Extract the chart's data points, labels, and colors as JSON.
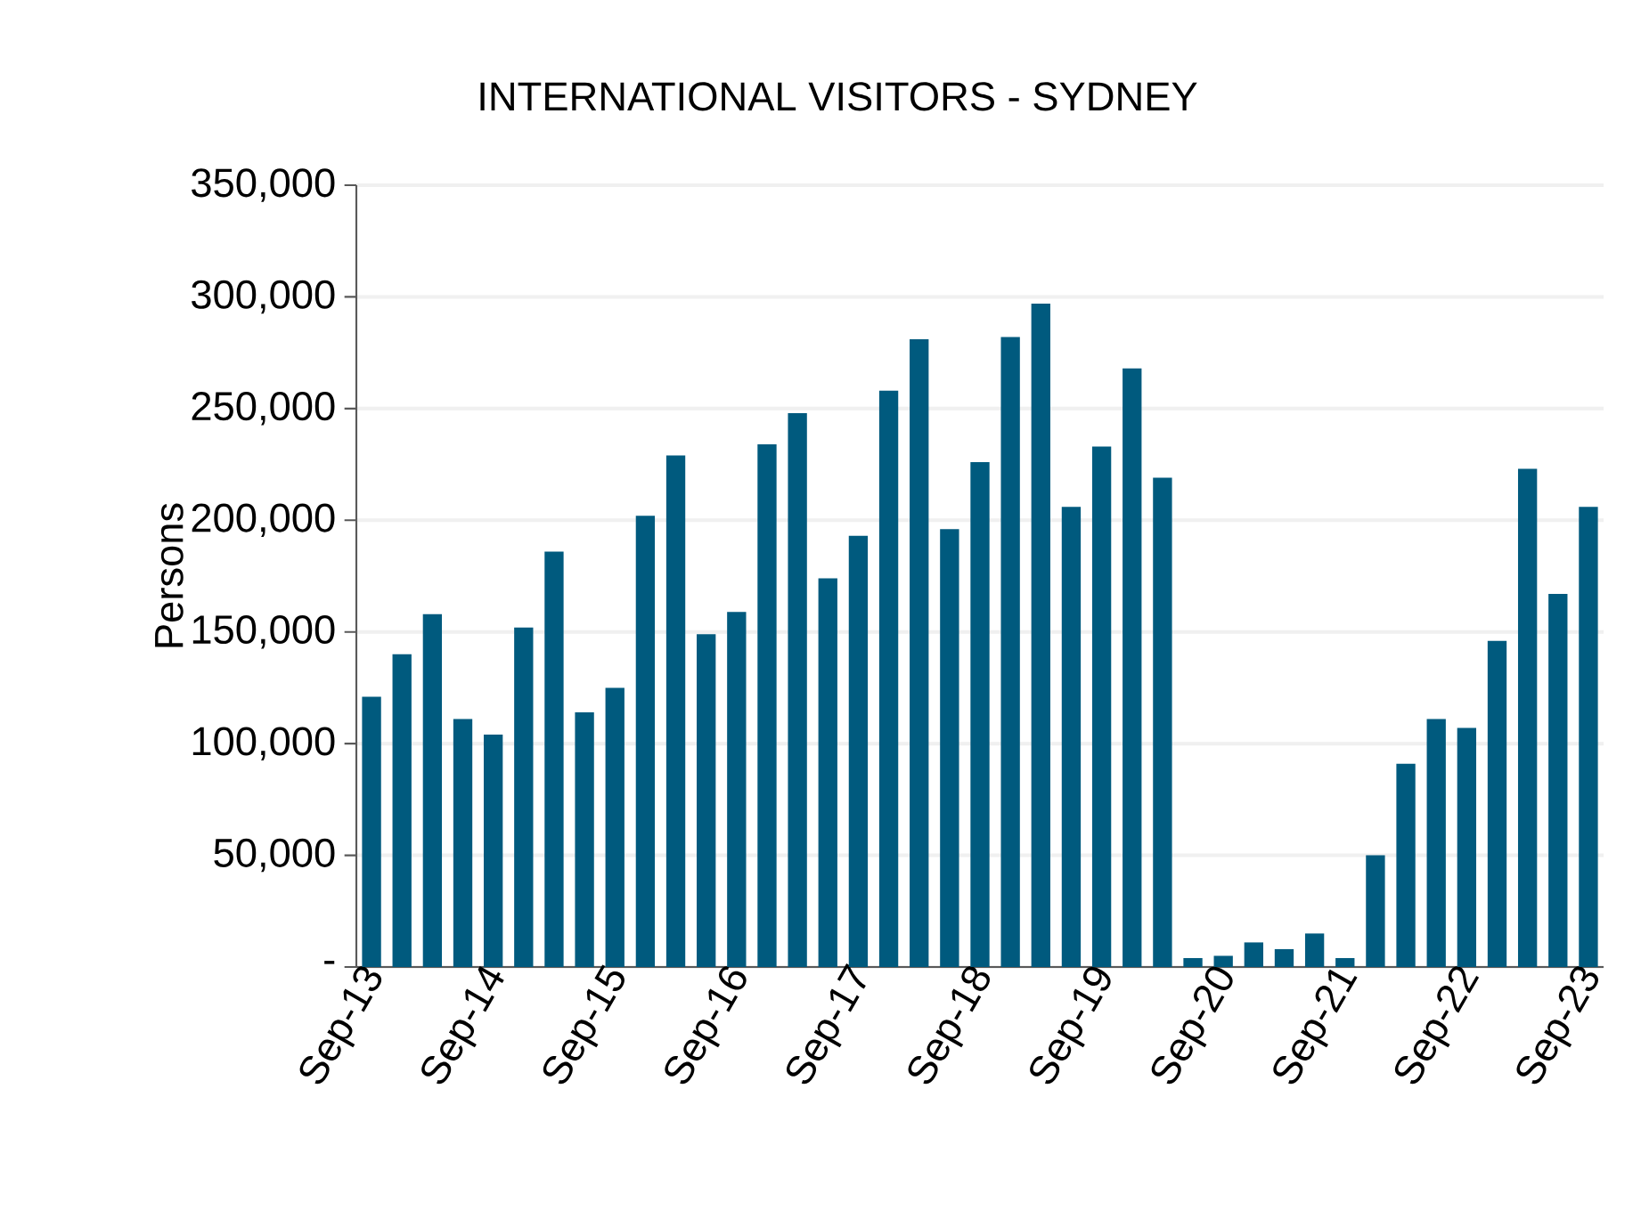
{
  "chart_data": {
    "type": "bar",
    "title": "INTERNATIONAL VISITORS - SYDNEY",
    "ylabel": "Persons",
    "categories": [
      "Sep-13",
      null,
      null,
      null,
      "Sep-14",
      null,
      null,
      null,
      "Sep-15",
      null,
      null,
      null,
      "Sep-16",
      null,
      null,
      null,
      "Sep-17",
      null,
      null,
      null,
      "Sep-18",
      null,
      null,
      null,
      "Sep-19",
      null,
      null,
      null,
      "Sep-20",
      null,
      null,
      null,
      "Sep-21",
      null,
      null,
      null,
      "Sep-22",
      null,
      null,
      null,
      "Sep-23"
    ],
    "values": [
      121000,
      140000,
      158000,
      111000,
      104000,
      152000,
      186000,
      114000,
      125000,
      202000,
      229000,
      149000,
      159000,
      234000,
      248000,
      174000,
      193000,
      258000,
      281000,
      196000,
      226000,
      282000,
      297000,
      206000,
      233000,
      268000,
      219000,
      4000,
      5000,
      11000,
      8000,
      15000,
      4000,
      50000,
      91000,
      111000,
      107000,
      146000,
      223000,
      167000,
      206000
    ],
    "color": "#005a7e",
    "ylim": [
      0,
      350000
    ],
    "yticks": [
      {
        "value": 0,
        "label": "-"
      },
      {
        "value": 50000,
        "label": "50,000"
      },
      {
        "value": 100000,
        "label": "100,000"
      },
      {
        "value": 150000,
        "label": "150,000"
      },
      {
        "value": 200000,
        "label": "200,000"
      },
      {
        "value": 250000,
        "label": "250,000"
      },
      {
        "value": 300000,
        "label": "300,000"
      },
      {
        "value": 350000,
        "label": "350,000"
      }
    ],
    "grid": "y"
  }
}
